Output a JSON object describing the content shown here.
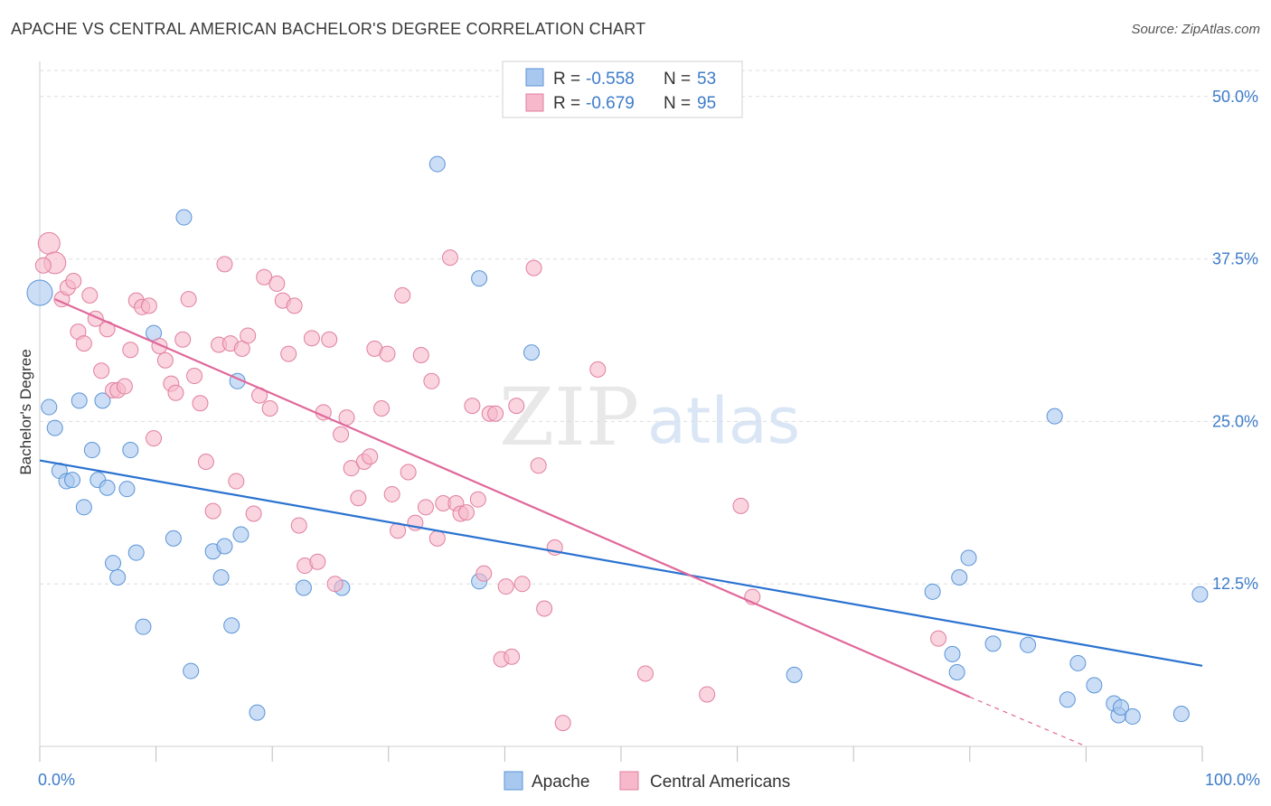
{
  "title": "APACHE VS CENTRAL AMERICAN BACHELOR'S DEGREE CORRELATION CHART",
  "source": "Source: ZipAtlas.com",
  "watermark": {
    "zip": "ZIP",
    "atlas": "atlas"
  },
  "legend": {
    "r_label": "R = ",
    "n_label": "N = ",
    "rows": [
      {
        "r": "-0.558",
        "n": "53"
      },
      {
        "r": "-0.679",
        "n": "95"
      }
    ]
  },
  "colors": {
    "apache_fill": "#a8c8f0",
    "apache_stroke": "#5b94d6",
    "apache_line": "#2a72d0",
    "central_fill": "#f6b8ca",
    "central_stroke": "#e07fa0",
    "central_line": "#e0689a",
    "tick_text": "#3d7cc9",
    "grid": "#dddddd"
  },
  "chart_data": {
    "type": "scatter",
    "title": "APACHE VS CENTRAL AMERICAN BACHELOR'S DEGREE CORRELATION CHART",
    "xlabel": "",
    "ylabel": "Bachelor's Degree",
    "xlim": [
      0,
      100
    ],
    "ylim": [
      0,
      52
    ],
    "x_tick_labels": [
      "0.0%",
      "100.0%"
    ],
    "y_ticks": [
      12.5,
      25.0,
      37.5,
      50.0
    ],
    "y_tick_labels": [
      "12.5%",
      "25.0%",
      "37.5%",
      "50.0%"
    ],
    "grid": "horizontal dashed",
    "legend_position": "top-center",
    "series": [
      {
        "name": "Apache",
        "r": -0.558,
        "n": 53,
        "trend": {
          "x": [
            0,
            100
          ],
          "y": [
            22.0,
            6.2
          ]
        },
        "points": [
          [
            0.0,
            34.9
          ],
          [
            0.8,
            26.1
          ],
          [
            1.3,
            24.5
          ],
          [
            1.7,
            21.2
          ],
          [
            2.3,
            20.4
          ],
          [
            2.8,
            20.5
          ],
          [
            3.4,
            26.6
          ],
          [
            3.8,
            18.4
          ],
          [
            4.5,
            22.8
          ],
          [
            5.0,
            20.5
          ],
          [
            5.4,
            26.6
          ],
          [
            5.8,
            19.9
          ],
          [
            6.3,
            14.1
          ],
          [
            6.7,
            13.0
          ],
          [
            7.5,
            19.8
          ],
          [
            7.8,
            22.8
          ],
          [
            8.3,
            14.9
          ],
          [
            8.9,
            9.2
          ],
          [
            9.8,
            31.8
          ],
          [
            11.5,
            16.0
          ],
          [
            12.4,
            40.7
          ],
          [
            13.0,
            5.8
          ],
          [
            14.9,
            15.0
          ],
          [
            15.6,
            13.0
          ],
          [
            15.9,
            15.4
          ],
          [
            16.5,
            9.3
          ],
          [
            17.0,
            28.1
          ],
          [
            17.3,
            16.3
          ],
          [
            18.7,
            2.6
          ],
          [
            22.7,
            12.2
          ],
          [
            26.0,
            12.2
          ],
          [
            34.2,
            44.8
          ],
          [
            37.8,
            36.0
          ],
          [
            37.8,
            12.7
          ],
          [
            42.3,
            30.3
          ],
          [
            64.9,
            5.5
          ],
          [
            76.8,
            11.9
          ],
          [
            78.5,
            7.1
          ],
          [
            78.9,
            5.7
          ],
          [
            79.1,
            13.0
          ],
          [
            79.9,
            14.5
          ],
          [
            82.0,
            7.9
          ],
          [
            85.0,
            7.8
          ],
          [
            87.3,
            25.4
          ],
          [
            88.4,
            3.6
          ],
          [
            89.3,
            6.4
          ],
          [
            90.7,
            4.7
          ],
          [
            92.4,
            3.3
          ],
          [
            92.8,
            2.4
          ],
          [
            93.0,
            3.0
          ],
          [
            94.0,
            2.3
          ],
          [
            98.2,
            2.5
          ],
          [
            99.8,
            11.7
          ]
        ]
      },
      {
        "name": "Central Americans",
        "r": -0.679,
        "n": 95,
        "trend": {
          "x": [
            1.3,
            80.0
          ],
          "y": [
            34.4,
            3.8
          ]
        },
        "trend_dashed": {
          "x": [
            80.0,
            90.0
          ],
          "y": [
            3.8,
            0.0
          ]
        },
        "points": [
          [
            0.8,
            38.7
          ],
          [
            1.3,
            37.2
          ],
          [
            1.9,
            34.4
          ],
          [
            2.4,
            35.3
          ],
          [
            2.9,
            35.8
          ],
          [
            3.3,
            31.9
          ],
          [
            3.8,
            31.0
          ],
          [
            4.3,
            34.7
          ],
          [
            4.8,
            32.9
          ],
          [
            5.3,
            28.9
          ],
          [
            5.8,
            32.1
          ],
          [
            6.3,
            27.4
          ],
          [
            6.7,
            27.4
          ],
          [
            7.3,
            27.7
          ],
          [
            7.8,
            30.5
          ],
          [
            8.3,
            34.3
          ],
          [
            8.8,
            33.8
          ],
          [
            9.4,
            33.9
          ],
          [
            9.8,
            23.7
          ],
          [
            10.3,
            30.8
          ],
          [
            10.8,
            29.7
          ],
          [
            11.3,
            27.9
          ],
          [
            11.7,
            27.2
          ],
          [
            12.3,
            31.3
          ],
          [
            12.8,
            34.4
          ],
          [
            13.3,
            28.5
          ],
          [
            13.8,
            26.4
          ],
          [
            14.3,
            21.9
          ],
          [
            14.9,
            18.1
          ],
          [
            15.4,
            30.9
          ],
          [
            15.9,
            37.1
          ],
          [
            16.4,
            31.0
          ],
          [
            16.9,
            20.4
          ],
          [
            17.4,
            30.6
          ],
          [
            17.9,
            31.6
          ],
          [
            18.4,
            17.9
          ],
          [
            18.9,
            27.0
          ],
          [
            19.3,
            36.1
          ],
          [
            19.8,
            26.0
          ],
          [
            20.4,
            35.6
          ],
          [
            20.9,
            34.3
          ],
          [
            21.4,
            30.2
          ],
          [
            21.9,
            33.9
          ],
          [
            22.3,
            17.0
          ],
          [
            22.8,
            13.9
          ],
          [
            23.4,
            31.4
          ],
          [
            23.9,
            14.2
          ],
          [
            24.4,
            25.7
          ],
          [
            24.9,
            31.3
          ],
          [
            25.4,
            12.5
          ],
          [
            25.9,
            24.0
          ],
          [
            26.4,
            25.3
          ],
          [
            26.8,
            21.4
          ],
          [
            27.4,
            19.1
          ],
          [
            27.9,
            21.9
          ],
          [
            28.4,
            22.3
          ],
          [
            28.8,
            30.6
          ],
          [
            29.4,
            26.0
          ],
          [
            29.9,
            30.2
          ],
          [
            30.3,
            19.4
          ],
          [
            30.8,
            16.6
          ],
          [
            31.2,
            34.7
          ],
          [
            31.7,
            21.1
          ],
          [
            32.3,
            17.2
          ],
          [
            32.8,
            30.1
          ],
          [
            33.2,
            18.4
          ],
          [
            33.7,
            28.1
          ],
          [
            34.2,
            16.0
          ],
          [
            34.7,
            18.7
          ],
          [
            35.3,
            37.6
          ],
          [
            35.8,
            18.7
          ],
          [
            36.2,
            17.9
          ],
          [
            36.7,
            18.0
          ],
          [
            37.2,
            26.2
          ],
          [
            37.7,
            19.0
          ],
          [
            38.2,
            13.3
          ],
          [
            38.7,
            25.6
          ],
          [
            39.2,
            25.6
          ],
          [
            39.7,
            6.7
          ],
          [
            40.1,
            12.3
          ],
          [
            40.6,
            6.9
          ],
          [
            41.0,
            26.2
          ],
          [
            41.5,
            12.5
          ],
          [
            42.5,
            36.8
          ],
          [
            42.9,
            21.6
          ],
          [
            43.4,
            10.6
          ],
          [
            44.3,
            15.3
          ],
          [
            45.0,
            1.8
          ],
          [
            48.0,
            29.0
          ],
          [
            52.1,
            5.6
          ],
          [
            57.4,
            4.0
          ],
          [
            60.3,
            18.5
          ],
          [
            61.3,
            11.5
          ],
          [
            77.3,
            8.3
          ],
          [
            0.3,
            37.0
          ]
        ]
      }
    ]
  },
  "bottom_legend": [
    "Apache",
    "Central Americans"
  ]
}
